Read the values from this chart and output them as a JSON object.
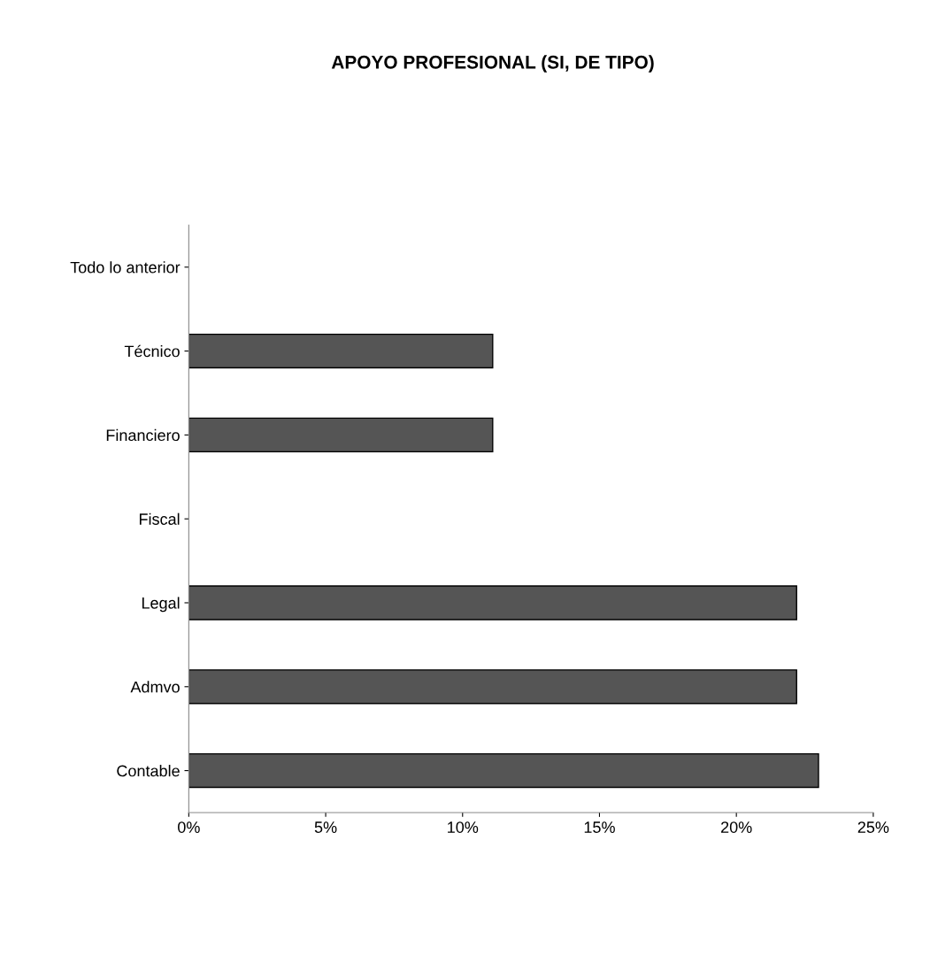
{
  "chart_data": {
    "type": "bar",
    "orientation": "horizontal",
    "title": "APOYO PROFESIONAL (SI, DE TIPO)",
    "categories": [
      "Todo lo anterior",
      "Técnico",
      "Financiero",
      "Fiscal",
      "Legal",
      "Admvo",
      "Contable"
    ],
    "values": [
      0,
      11.1,
      11.1,
      0,
      22.2,
      22.2,
      23.0
    ],
    "color": "#555555",
    "xlim": [
      0,
      25
    ],
    "xticks": [
      {
        "value": 0,
        "label": "0%"
      },
      {
        "value": 5,
        "label": "5%"
      },
      {
        "value": 10,
        "label": "10%"
      },
      {
        "value": 15,
        "label": "15%"
      },
      {
        "value": 20,
        "label": "20%"
      },
      {
        "value": 25,
        "label": "25%"
      }
    ],
    "grid": false,
    "legend": false
  }
}
